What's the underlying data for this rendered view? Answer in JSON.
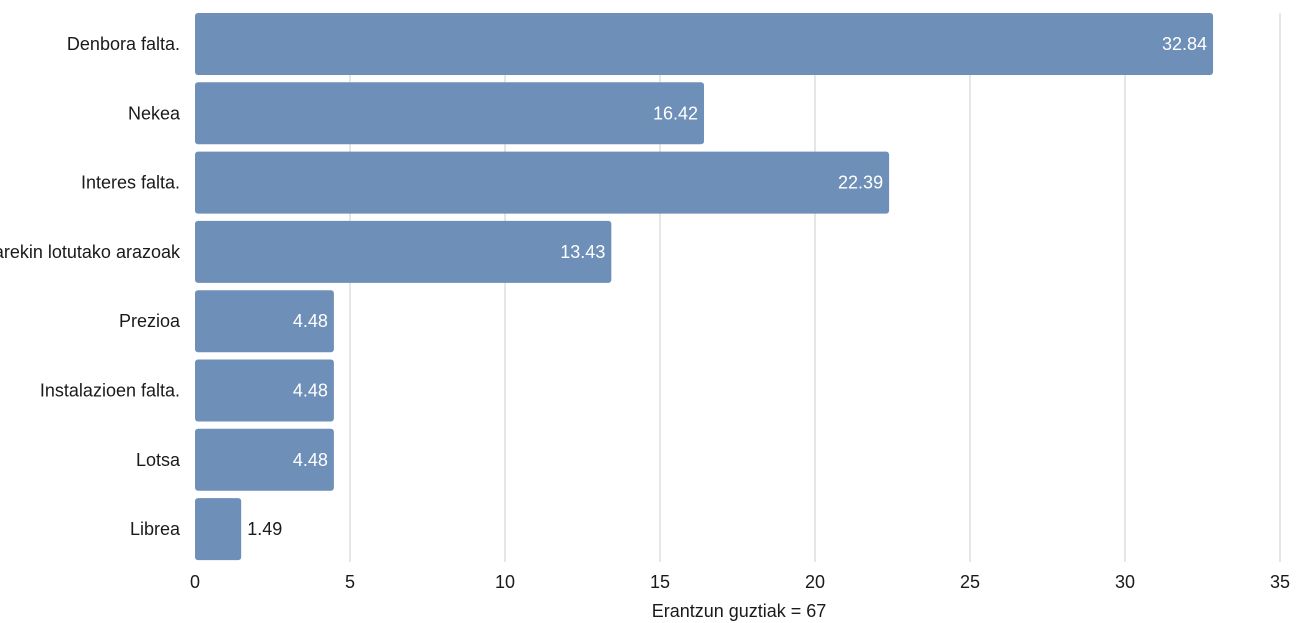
{
  "chart_data": {
    "type": "bar",
    "orientation": "horizontal",
    "categories": [
      "Denbora falta.",
      "Nekea",
      "Interes falta.",
      "Osasunarekin lotutako arazoak",
      "Prezioa",
      "Instalazioen falta.",
      "Lotsa",
      "Librea"
    ],
    "values": [
      32.84,
      16.42,
      22.39,
      13.43,
      4.48,
      4.48,
      4.48,
      1.49
    ],
    "xlabel": "Erantzun guztiak = 67",
    "xlim": [
      0,
      35
    ],
    "xticks": [
      0,
      5,
      10,
      15,
      20,
      25,
      30,
      35
    ],
    "grid": true,
    "bar_color": "#6d8fb8",
    "grid_color": "#cccccc"
  }
}
